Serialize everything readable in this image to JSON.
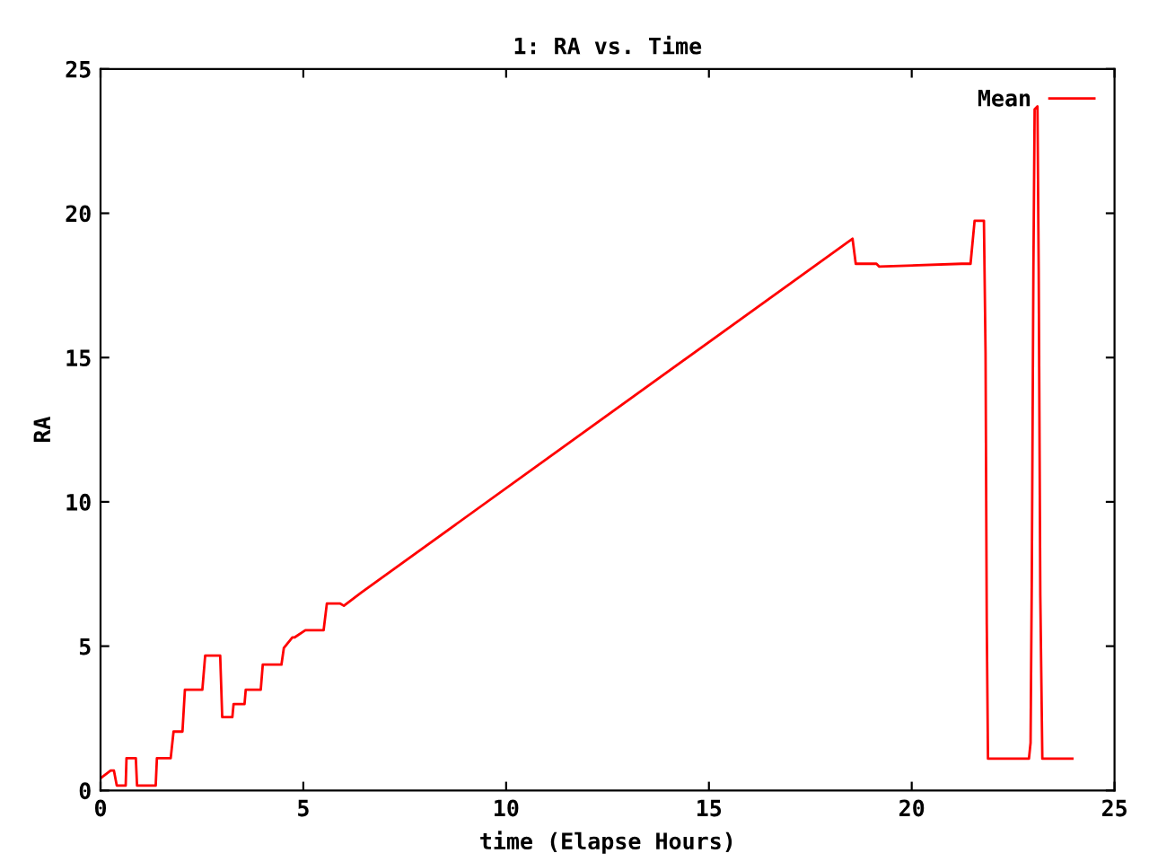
{
  "chart_data": {
    "type": "line",
    "title": "1: RA vs. Time",
    "xlabel": "time (Elapse Hours)",
    "ylabel": "RA",
    "xlim": [
      0,
      25
    ],
    "ylim": [
      0,
      25
    ],
    "xticks": [
      0,
      5,
      10,
      15,
      20,
      25
    ],
    "yticks": [
      0,
      5,
      10,
      15,
      20,
      25
    ],
    "grid": false,
    "legend": "top right",
    "series": [
      {
        "name": "Mean",
        "color": "#ff0000",
        "x": [
          0,
          0.25,
          0.33,
          0.4,
          0.62,
          0.64,
          0.87,
          0.9,
          1.36,
          1.39,
          1.73,
          1.8,
          2.02,
          2.08,
          2.51,
          2.58,
          2.95,
          3.0,
          3.25,
          3.28,
          3.55,
          3.58,
          3.95,
          4.0,
          4.46,
          4.52,
          4.73,
          4.78,
          5.05,
          5.1,
          5.5,
          5.58,
          5.9,
          6.0,
          6.43,
          18.54,
          18.62,
          19.13,
          19.2,
          21.23,
          21.45,
          21.55,
          21.78,
          21.82,
          21.85,
          21.88,
          22.89,
          22.93,
          22.96,
          23.0,
          23.03,
          23.1,
          23.13,
          23.17,
          23.22,
          23.29,
          23.96
        ],
        "values": [
          0.42,
          0.69,
          0.69,
          0.17,
          0.17,
          1.12,
          1.12,
          0.17,
          0.17,
          1.12,
          1.12,
          2.04,
          2.04,
          3.49,
          3.49,
          4.67,
          4.67,
          2.54,
          2.54,
          2.99,
          2.99,
          3.49,
          3.49,
          4.36,
          4.36,
          4.94,
          5.3,
          5.3,
          5.55,
          5.55,
          5.55,
          6.48,
          6.48,
          6.4,
          6.86,
          19.12,
          18.25,
          18.25,
          18.15,
          18.25,
          18.25,
          19.74,
          19.74,
          15.16,
          5.76,
          1.1,
          1.1,
          1.65,
          7.31,
          18.11,
          23.6,
          23.7,
          18.1,
          6.76,
          1.1,
          1.1,
          1.1
        ]
      }
    ]
  }
}
